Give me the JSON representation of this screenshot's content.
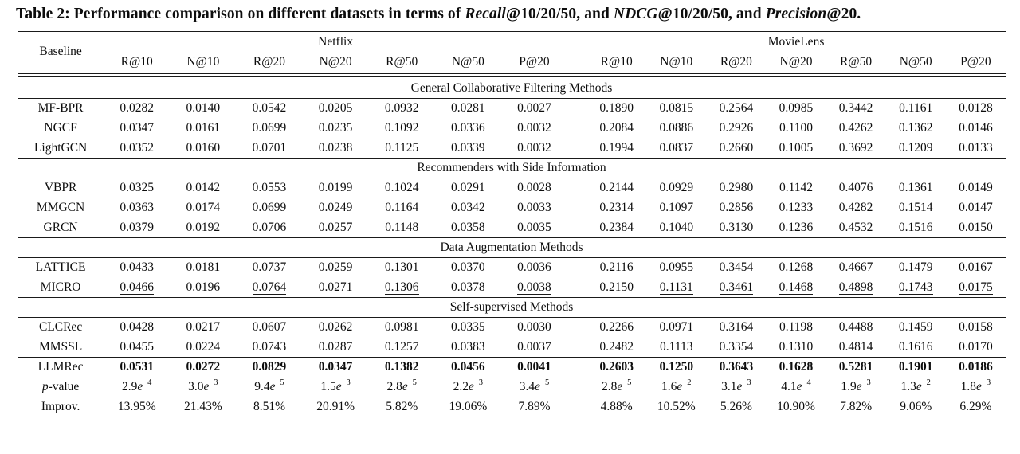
{
  "title": {
    "p1": "Table 2: Performance comparison on different datasets in terms of ",
    "i1": "Recall",
    "p2": "@10/20/50, and ",
    "i2": "NDCG",
    "p3": "@10/20/50, and ",
    "i3": "Precision",
    "p4": "@20."
  },
  "table": {
    "corner_label": "Baseline",
    "groups": [
      {
        "label": "Netflix",
        "columns": [
          "R@10",
          "N@10",
          "R@20",
          "N@20",
          "R@50",
          "N@50",
          "P@20"
        ]
      },
      {
        "label": "MovieLens",
        "columns": [
          "R@10",
          "N@10",
          "R@20",
          "N@20",
          "R@50",
          "N@50",
          "P@20"
        ]
      }
    ],
    "sections": [
      {
        "title": "General Collaborative Filtering Methods",
        "rows": [
          {
            "label": "MF-BPR",
            "cells": [
              {
                "v": "0.0282"
              },
              {
                "v": "0.0140"
              },
              {
                "v": "0.0542"
              },
              {
                "v": "0.0205"
              },
              {
                "v": "0.0932"
              },
              {
                "v": "0.0281"
              },
              {
                "v": "0.0027"
              },
              {
                "v": "0.1890"
              },
              {
                "v": "0.0815"
              },
              {
                "v": "0.2564"
              },
              {
                "v": "0.0985"
              },
              {
                "v": "0.3442"
              },
              {
                "v": "0.1161"
              },
              {
                "v": "0.0128"
              }
            ]
          },
          {
            "label": "NGCF",
            "cells": [
              {
                "v": "0.0347"
              },
              {
                "v": "0.0161"
              },
              {
                "v": "0.0699"
              },
              {
                "v": "0.0235"
              },
              {
                "v": "0.1092"
              },
              {
                "v": "0.0336"
              },
              {
                "v": "0.0032"
              },
              {
                "v": "0.2084"
              },
              {
                "v": "0.0886"
              },
              {
                "v": "0.2926"
              },
              {
                "v": "0.1100"
              },
              {
                "v": "0.4262"
              },
              {
                "v": "0.1362"
              },
              {
                "v": "0.0146"
              }
            ]
          },
          {
            "label": "LightGCN",
            "cells": [
              {
                "v": "0.0352"
              },
              {
                "v": "0.0160"
              },
              {
                "v": "0.0701"
              },
              {
                "v": "0.0238"
              },
              {
                "v": "0.1125"
              },
              {
                "v": "0.0339"
              },
              {
                "v": "0.0032"
              },
              {
                "v": "0.1994"
              },
              {
                "v": "0.0837"
              },
              {
                "v": "0.2660"
              },
              {
                "v": "0.1005"
              },
              {
                "v": "0.3692"
              },
              {
                "v": "0.1209"
              },
              {
                "v": "0.0133"
              }
            ]
          }
        ]
      },
      {
        "title": "Recommenders with Side Information",
        "rows": [
          {
            "label": "VBPR",
            "cells": [
              {
                "v": "0.0325"
              },
              {
                "v": "0.0142"
              },
              {
                "v": "0.0553"
              },
              {
                "v": "0.0199"
              },
              {
                "v": "0.1024"
              },
              {
                "v": "0.0291"
              },
              {
                "v": "0.0028"
              },
              {
                "v": "0.2144"
              },
              {
                "v": "0.0929"
              },
              {
                "v": "0.2980"
              },
              {
                "v": "0.1142"
              },
              {
                "v": "0.4076"
              },
              {
                "v": "0.1361"
              },
              {
                "v": "0.0149"
              }
            ]
          },
          {
            "label": "MMGCN",
            "cells": [
              {
                "v": "0.0363"
              },
              {
                "v": "0.0174"
              },
              {
                "v": "0.0699"
              },
              {
                "v": "0.0249"
              },
              {
                "v": "0.1164"
              },
              {
                "v": "0.0342"
              },
              {
                "v": "0.0033"
              },
              {
                "v": "0.2314"
              },
              {
                "v": "0.1097"
              },
              {
                "v": "0.2856"
              },
              {
                "v": "0.1233"
              },
              {
                "v": "0.4282"
              },
              {
                "v": "0.1514"
              },
              {
                "v": "0.0147"
              }
            ]
          },
          {
            "label": "GRCN",
            "cells": [
              {
                "v": "0.0379"
              },
              {
                "v": "0.0192"
              },
              {
                "v": "0.0706"
              },
              {
                "v": "0.0257"
              },
              {
                "v": "0.1148"
              },
              {
                "v": "0.0358"
              },
              {
                "v": "0.0035"
              },
              {
                "v": "0.2384"
              },
              {
                "v": "0.1040"
              },
              {
                "v": "0.3130"
              },
              {
                "v": "0.1236"
              },
              {
                "v": "0.4532"
              },
              {
                "v": "0.1516"
              },
              {
                "v": "0.0150"
              }
            ]
          }
        ]
      },
      {
        "title": "Data Augmentation Methods",
        "rows": [
          {
            "label": "LATTICE",
            "cells": [
              {
                "v": "0.0433"
              },
              {
                "v": "0.0181"
              },
              {
                "v": "0.0737"
              },
              {
                "v": "0.0259"
              },
              {
                "v": "0.1301"
              },
              {
                "v": "0.0370"
              },
              {
                "v": "0.0036"
              },
              {
                "v": "0.2116"
              },
              {
                "v": "0.0955"
              },
              {
                "v": "0.3454"
              },
              {
                "v": "0.1268"
              },
              {
                "v": "0.4667"
              },
              {
                "v": "0.1479"
              },
              {
                "v": "0.0167"
              }
            ]
          },
          {
            "label": "MICRO",
            "cells": [
              {
                "v": "0.0466",
                "u": true
              },
              {
                "v": "0.0196"
              },
              {
                "v": "0.0764",
                "u": true
              },
              {
                "v": "0.0271"
              },
              {
                "v": "0.1306",
                "u": true
              },
              {
                "v": "0.0378"
              },
              {
                "v": "0.0038",
                "u": true
              },
              {
                "v": "0.2150"
              },
              {
                "v": "0.1131",
                "u": true
              },
              {
                "v": "0.3461",
                "u": true
              },
              {
                "v": "0.1468",
                "u": true
              },
              {
                "v": "0.4898",
                "u": true
              },
              {
                "v": "0.1743",
                "u": true
              },
              {
                "v": "0.0175",
                "u": true
              }
            ]
          }
        ]
      },
      {
        "title": "Self-supervised Methods",
        "rows": [
          {
            "label": "CLCRec",
            "cells": [
              {
                "v": "0.0428"
              },
              {
                "v": "0.0217"
              },
              {
                "v": "0.0607"
              },
              {
                "v": "0.0262"
              },
              {
                "v": "0.0981"
              },
              {
                "v": "0.0335"
              },
              {
                "v": "0.0030"
              },
              {
                "v": "0.2266"
              },
              {
                "v": "0.0971"
              },
              {
                "v": "0.3164"
              },
              {
                "v": "0.1198"
              },
              {
                "v": "0.4488"
              },
              {
                "v": "0.1459"
              },
              {
                "v": "0.0158"
              }
            ]
          },
          {
            "label": "MMSSL",
            "cells": [
              {
                "v": "0.0455"
              },
              {
                "v": "0.0224",
                "u": true
              },
              {
                "v": "0.0743"
              },
              {
                "v": "0.0287",
                "u": true
              },
              {
                "v": "0.1257"
              },
              {
                "v": "0.0383",
                "u": true
              },
              {
                "v": "0.0037"
              },
              {
                "v": "0.2482",
                "u": true
              },
              {
                "v": "0.1113"
              },
              {
                "v": "0.3354"
              },
              {
                "v": "0.1310"
              },
              {
                "v": "0.4814"
              },
              {
                "v": "0.1616"
              },
              {
                "v": "0.0170"
              }
            ]
          },
          {
            "label": "LLMRec",
            "bold": true,
            "rule_above": true,
            "cells": [
              {
                "v": "0.0531"
              },
              {
                "v": "0.0272"
              },
              {
                "v": "0.0829"
              },
              {
                "v": "0.0347"
              },
              {
                "v": "0.1382"
              },
              {
                "v": "0.0456"
              },
              {
                "v": "0.0041"
              },
              {
                "v": "0.2603"
              },
              {
                "v": "0.1250"
              },
              {
                "v": "0.3643"
              },
              {
                "v": "0.1628"
              },
              {
                "v": "0.5281"
              },
              {
                "v": "0.1901"
              },
              {
                "v": "0.0186"
              }
            ]
          },
          {
            "label": "-value",
            "li": "p",
            "cells": [
              {
                "m": "2.9",
                "e": "−4"
              },
              {
                "m": "3.0",
                "e": "−3"
              },
              {
                "m": "9.4",
                "e": "−5"
              },
              {
                "m": "1.5",
                "e": "−3"
              },
              {
                "m": "2.8",
                "e": "−5"
              },
              {
                "m": "2.2",
                "e": "−3"
              },
              {
                "m": "3.4",
                "e": "−5"
              },
              {
                "m": "2.8",
                "e": "−5"
              },
              {
                "m": "1.6",
                "e": "−2"
              },
              {
                "m": "3.1",
                "e": "−3"
              },
              {
                "m": "4.1",
                "e": "−4"
              },
              {
                "m": "1.9",
                "e": "−3"
              },
              {
                "m": "1.3",
                "e": "−2"
              },
              {
                "m": "1.8",
                "e": "−3"
              }
            ]
          },
          {
            "label": "Improv.",
            "cells": [
              {
                "v": "13.95%"
              },
              {
                "v": "21.43%"
              },
              {
                "v": "8.51%"
              },
              {
                "v": "20.91%"
              },
              {
                "v": "5.82%"
              },
              {
                "v": "19.06%"
              },
              {
                "v": "7.89%"
              },
              {
                "v": "4.88%"
              },
              {
                "v": "10.52%"
              },
              {
                "v": "5.26%"
              },
              {
                "v": "10.90%"
              },
              {
                "v": "7.82%"
              },
              {
                "v": "9.06%"
              },
              {
                "v": "6.29%"
              }
            ]
          }
        ]
      }
    ]
  }
}
